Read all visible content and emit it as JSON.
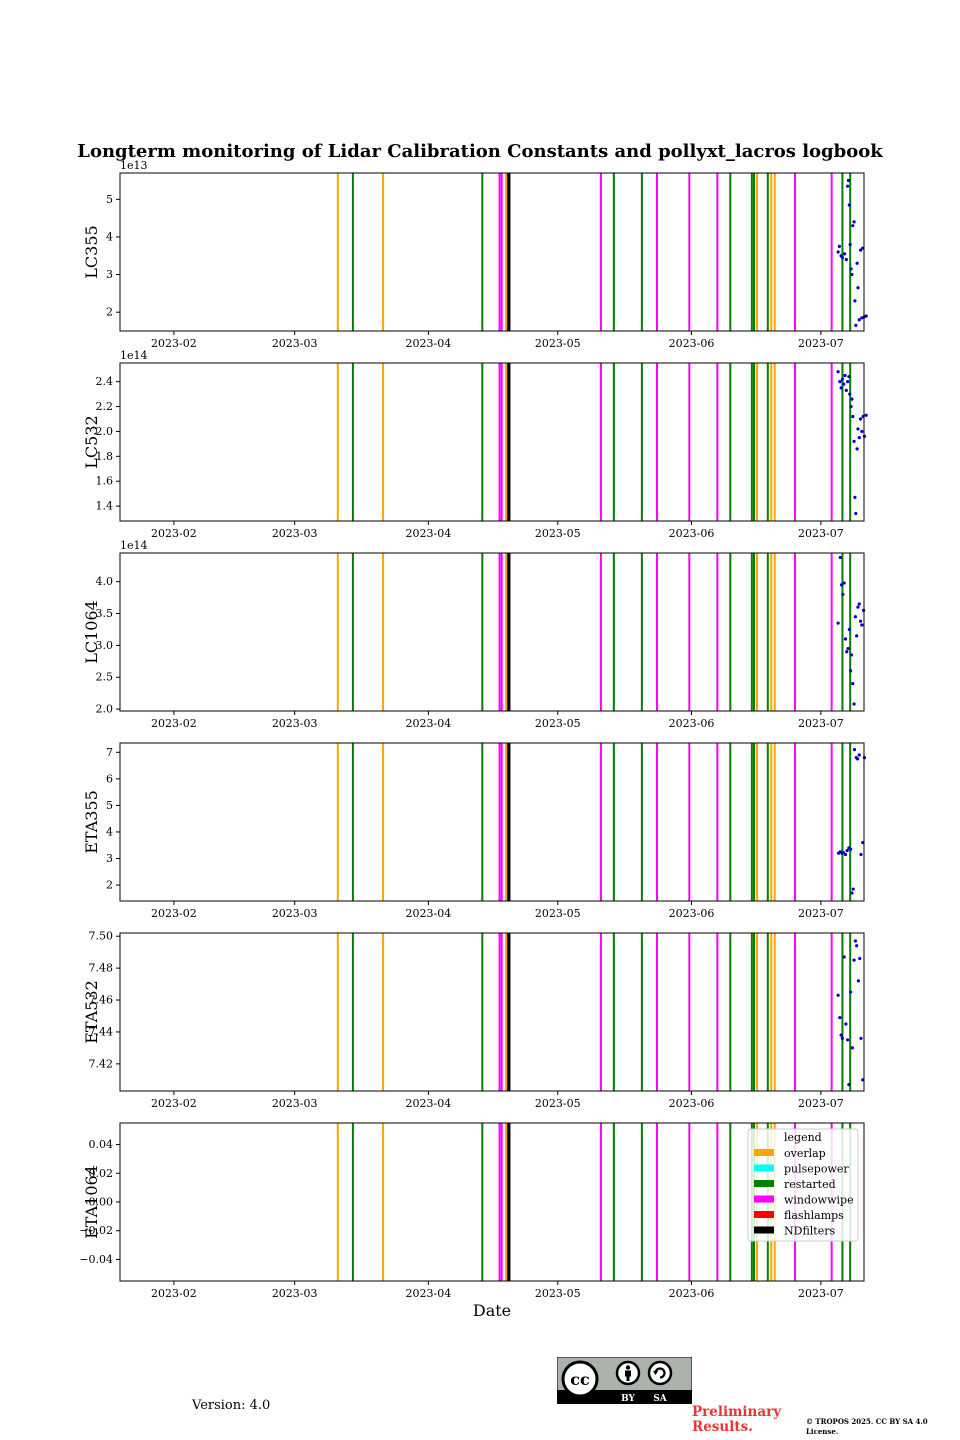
{
  "figure": {
    "title": "Longterm monitoring of Lidar Calibration Constants and pollyxt_lacros logbook",
    "xlabel": "Date",
    "version": "Version: 4.0",
    "preliminary": "Preliminary Results.",
    "copyright": "© TROPOS 2025. CC BY SA 4.0 License.",
    "license_badge": {
      "icons": [
        "cc-icon",
        "by-icon",
        "sa-icon"
      ],
      "labels": [
        "BY",
        "SA"
      ]
    }
  },
  "chart_data": [
    {
      "type": "scatter",
      "ylabel": "LC355",
      "offset_text": "1e13",
      "ylim": [
        1.5,
        5.7
      ],
      "yticks": [
        2,
        3,
        4,
        5
      ],
      "ytick_labels": [
        "2",
        "3",
        "4",
        "5"
      ],
      "points": [
        {
          "day": 166.5,
          "v": 3.6
        },
        {
          "day": 166.8,
          "v": 3.75
        },
        {
          "day": 167.2,
          "v": 3.5
        },
        {
          "day": 167.5,
          "v": 3.45
        },
        {
          "day": 168.0,
          "v": 3.55
        },
        {
          "day": 168.4,
          "v": 3.4
        },
        {
          "day": 168.7,
          "v": 5.35
        },
        {
          "day": 168.9,
          "v": 5.5
        },
        {
          "day": 169.1,
          "v": 4.85
        },
        {
          "day": 169.3,
          "v": 3.8
        },
        {
          "day": 169.5,
          "v": 3.15
        },
        {
          "day": 169.7,
          "v": 3.0
        },
        {
          "day": 169.9,
          "v": 4.3
        },
        {
          "day": 170.2,
          "v": 4.4
        },
        {
          "day": 170.4,
          "v": 2.3
        },
        {
          "day": 170.6,
          "v": 1.65
        },
        {
          "day": 170.9,
          "v": 3.3
        },
        {
          "day": 171.1,
          "v": 2.65
        },
        {
          "day": 171.4,
          "v": 1.8
        },
        {
          "day": 171.7,
          "v": 3.65
        },
        {
          "day": 172.0,
          "v": 1.85
        },
        {
          "day": 172.2,
          "v": 3.7
        },
        {
          "day": 172.6,
          "v": 1.88
        },
        {
          "day": 173.0,
          "v": 1.9
        }
      ]
    },
    {
      "type": "scatter",
      "ylabel": "LC532",
      "offset_text": "1e14",
      "ylim": [
        1.28,
        2.55
      ],
      "yticks": [
        1.4,
        1.6,
        1.8,
        2.0,
        2.2,
        2.4
      ],
      "ytick_labels": [
        "1.4",
        "1.6",
        "1.8",
        "2.0",
        "2.2",
        "2.4"
      ],
      "points": [
        {
          "day": 166.5,
          "v": 2.48
        },
        {
          "day": 166.9,
          "v": 2.4
        },
        {
          "day": 167.2,
          "v": 2.35
        },
        {
          "day": 167.5,
          "v": 2.42
        },
        {
          "day": 167.8,
          "v": 2.38
        },
        {
          "day": 168.1,
          "v": 2.45
        },
        {
          "day": 168.4,
          "v": 2.33
        },
        {
          "day": 168.7,
          "v": 2.4
        },
        {
          "day": 169.0,
          "v": 2.44
        },
        {
          "day": 169.2,
          "v": 2.3
        },
        {
          "day": 169.5,
          "v": 2.2
        },
        {
          "day": 169.7,
          "v": 2.26
        },
        {
          "day": 169.9,
          "v": 2.12
        },
        {
          "day": 170.2,
          "v": 1.92
        },
        {
          "day": 170.4,
          "v": 1.47
        },
        {
          "day": 170.6,
          "v": 1.34
        },
        {
          "day": 170.9,
          "v": 1.86
        },
        {
          "day": 171.1,
          "v": 2.02
        },
        {
          "day": 171.4,
          "v": 1.95
        },
        {
          "day": 171.7,
          "v": 2.1
        },
        {
          "day": 172.0,
          "v": 2.0
        },
        {
          "day": 172.3,
          "v": 2.12
        },
        {
          "day": 172.6,
          "v": 1.96
        },
        {
          "day": 173.0,
          "v": 2.13
        }
      ]
    },
    {
      "type": "scatter",
      "ylabel": "LC1064",
      "offset_text": "1e14",
      "ylim": [
        1.97,
        4.45
      ],
      "yticks": [
        2.0,
        2.5,
        3.0,
        3.5,
        4.0
      ],
      "ytick_labels": [
        "2.0",
        "2.5",
        "3.0",
        "3.5",
        "4.0"
      ],
      "points": [
        {
          "day": 166.5,
          "v": 3.35
        },
        {
          "day": 167.0,
          "v": 4.38
        },
        {
          "day": 167.3,
          "v": 3.95
        },
        {
          "day": 167.6,
          "v": 3.8
        },
        {
          "day": 167.9,
          "v": 3.98
        },
        {
          "day": 168.2,
          "v": 3.1
        },
        {
          "day": 168.5,
          "v": 2.9
        },
        {
          "day": 168.8,
          "v": 2.95
        },
        {
          "day": 169.1,
          "v": 3.25
        },
        {
          "day": 169.4,
          "v": 2.6
        },
        {
          "day": 169.6,
          "v": 2.85
        },
        {
          "day": 169.9,
          "v": 2.4
        },
        {
          "day": 170.2,
          "v": 2.08
        },
        {
          "day": 170.5,
          "v": 3.45
        },
        {
          "day": 170.8,
          "v": 3.15
        },
        {
          "day": 171.1,
          "v": 3.6
        },
        {
          "day": 171.4,
          "v": 3.65
        },
        {
          "day": 171.7,
          "v": 3.38
        },
        {
          "day": 172.0,
          "v": 3.32
        },
        {
          "day": 172.4,
          "v": 3.55
        }
      ]
    },
    {
      "type": "scatter",
      "ylabel": "ETA355",
      "offset_text": "",
      "ylim": [
        1.4,
        7.35
      ],
      "yticks": [
        2,
        3,
        4,
        5,
        6,
        7
      ],
      "ytick_labels": [
        "2",
        "3",
        "4",
        "5",
        "6",
        "7"
      ],
      "points": [
        {
          "day": 166.6,
          "v": 3.2
        },
        {
          "day": 167.0,
          "v": 3.25
        },
        {
          "day": 167.4,
          "v": 3.2
        },
        {
          "day": 167.8,
          "v": 3.22
        },
        {
          "day": 168.2,
          "v": 3.15
        },
        {
          "day": 168.6,
          "v": 3.3
        },
        {
          "day": 169.0,
          "v": 3.4
        },
        {
          "day": 169.4,
          "v": 3.35
        },
        {
          "day": 169.7,
          "v": 1.7
        },
        {
          "day": 170.0,
          "v": 1.85
        },
        {
          "day": 170.3,
          "v": 7.1
        },
        {
          "day": 170.7,
          "v": 6.8
        },
        {
          "day": 171.0,
          "v": 6.75
        },
        {
          "day": 171.4,
          "v": 6.9
        },
        {
          "day": 171.8,
          "v": 3.15
        },
        {
          "day": 172.2,
          "v": 3.6
        },
        {
          "day": 172.6,
          "v": 6.8
        }
      ]
    },
    {
      "type": "scatter",
      "ylabel": "ETA532",
      "offset_text": "",
      "ylim": [
        7.403,
        7.502
      ],
      "yticks": [
        7.42,
        7.44,
        7.46,
        7.48,
        7.5
      ],
      "ytick_labels": [
        "7.42",
        "7.44",
        "7.46",
        "7.48",
        "7.50"
      ],
      "points": [
        {
          "day": 166.5,
          "v": 7.463
        },
        {
          "day": 166.9,
          "v": 7.449
        },
        {
          "day": 167.2,
          "v": 7.438
        },
        {
          "day": 167.5,
          "v": 7.436
        },
        {
          "day": 167.9,
          "v": 7.487
        },
        {
          "day": 168.3,
          "v": 7.445
        },
        {
          "day": 168.7,
          "v": 7.435
        },
        {
          "day": 169.0,
          "v": 7.407
        },
        {
          "day": 169.4,
          "v": 7.465
        },
        {
          "day": 169.8,
          "v": 7.43
        },
        {
          "day": 170.2,
          "v": 7.485
        },
        {
          "day": 170.5,
          "v": 7.497
        },
        {
          "day": 170.8,
          "v": 7.494
        },
        {
          "day": 171.2,
          "v": 7.472
        },
        {
          "day": 171.5,
          "v": 7.486
        },
        {
          "day": 171.8,
          "v": 7.436
        },
        {
          "day": 172.2,
          "v": 7.41
        }
      ]
    },
    {
      "type": "scatter",
      "ylabel": "ETA1064",
      "offset_text": "",
      "ylim": [
        -0.055,
        0.055
      ],
      "yticks": [
        -0.04,
        -0.02,
        0.0,
        0.02,
        0.04
      ],
      "ytick_labels": [
        "−0.04",
        "−0.02",
        "0.00",
        "0.02",
        "0.04"
      ],
      "points": []
    }
  ],
  "time_axis": {
    "xlim_days": [
      0,
      172.5
    ],
    "ticks": [
      {
        "day": 12.5,
        "label": "2023-02"
      },
      {
        "day": 40.5,
        "label": "2023-03"
      },
      {
        "day": 71.5,
        "label": "2023-04"
      },
      {
        "day": 101.5,
        "label": "2023-05"
      },
      {
        "day": 132.5,
        "label": "2023-06"
      },
      {
        "day": 162.5,
        "label": "2023-07"
      }
    ]
  },
  "events": [
    {
      "day": 50.5,
      "category": "overlap",
      "color": "#ffa500"
    },
    {
      "day": 54.0,
      "category": "restarted",
      "color": "#008000"
    },
    {
      "day": 61.0,
      "category": "overlap",
      "color": "#ffa500"
    },
    {
      "day": 84.0,
      "category": "restarted",
      "color": "#008000"
    },
    {
      "day": 88.0,
      "category": "windowwipe",
      "color": "#ff00ff"
    },
    {
      "day": 88.5,
      "category": "windowwipe",
      "color": "#ff00ff"
    },
    {
      "day": 89.5,
      "category": "overlap",
      "color": "#ffa500"
    },
    {
      "day": 90.0,
      "category": "NDfilters",
      "color": "#000000"
    },
    {
      "day": 90.3,
      "category": "NDfilters",
      "color": "#000000"
    },
    {
      "day": 111.5,
      "category": "windowwipe",
      "color": "#ff00ff"
    },
    {
      "day": 114.5,
      "category": "restarted",
      "color": "#008000"
    },
    {
      "day": 121.0,
      "category": "restarted",
      "color": "#008000"
    },
    {
      "day": 124.5,
      "category": "windowwipe",
      "color": "#ff00ff"
    },
    {
      "day": 132.0,
      "category": "windowwipe",
      "color": "#ff00ff"
    },
    {
      "day": 138.5,
      "category": "windowwipe",
      "color": "#ff00ff"
    },
    {
      "day": 141.5,
      "category": "restarted",
      "color": "#008000"
    },
    {
      "day": 146.5,
      "category": "restarted",
      "color": "#008000"
    },
    {
      "day": 147.0,
      "category": "restarted",
      "color": "#008000"
    },
    {
      "day": 147.7,
      "category": "overlap",
      "color": "#ffa500"
    },
    {
      "day": 150.2,
      "category": "restarted",
      "color": "#008000"
    },
    {
      "day": 151.0,
      "category": "overlap",
      "color": "#ffa500"
    },
    {
      "day": 151.8,
      "category": "overlap",
      "color": "#ffa500"
    },
    {
      "day": 156.5,
      "category": "windowwipe",
      "color": "#ff00ff"
    },
    {
      "day": 165.0,
      "category": "windowwipe",
      "color": "#ff00ff"
    },
    {
      "day": 167.5,
      "category": "restarted",
      "color": "#008000"
    },
    {
      "day": 169.3,
      "category": "restarted",
      "color": "#008000"
    }
  ],
  "legend": {
    "title": "legend",
    "entries": [
      {
        "label": "overlap",
        "color": "#ffa500"
      },
      {
        "label": "pulsepower",
        "color": "#00ffff"
      },
      {
        "label": "restarted",
        "color": "#008000"
      },
      {
        "label": "windowwipe",
        "color": "#ff00ff"
      },
      {
        "label": "flashlamps",
        "color": "#ff0000"
      },
      {
        "label": "NDfilters",
        "color": "#000000"
      }
    ]
  },
  "colors": {
    "points": "#0000cc",
    "axes": "#000000",
    "preliminary": "#ee3333"
  }
}
